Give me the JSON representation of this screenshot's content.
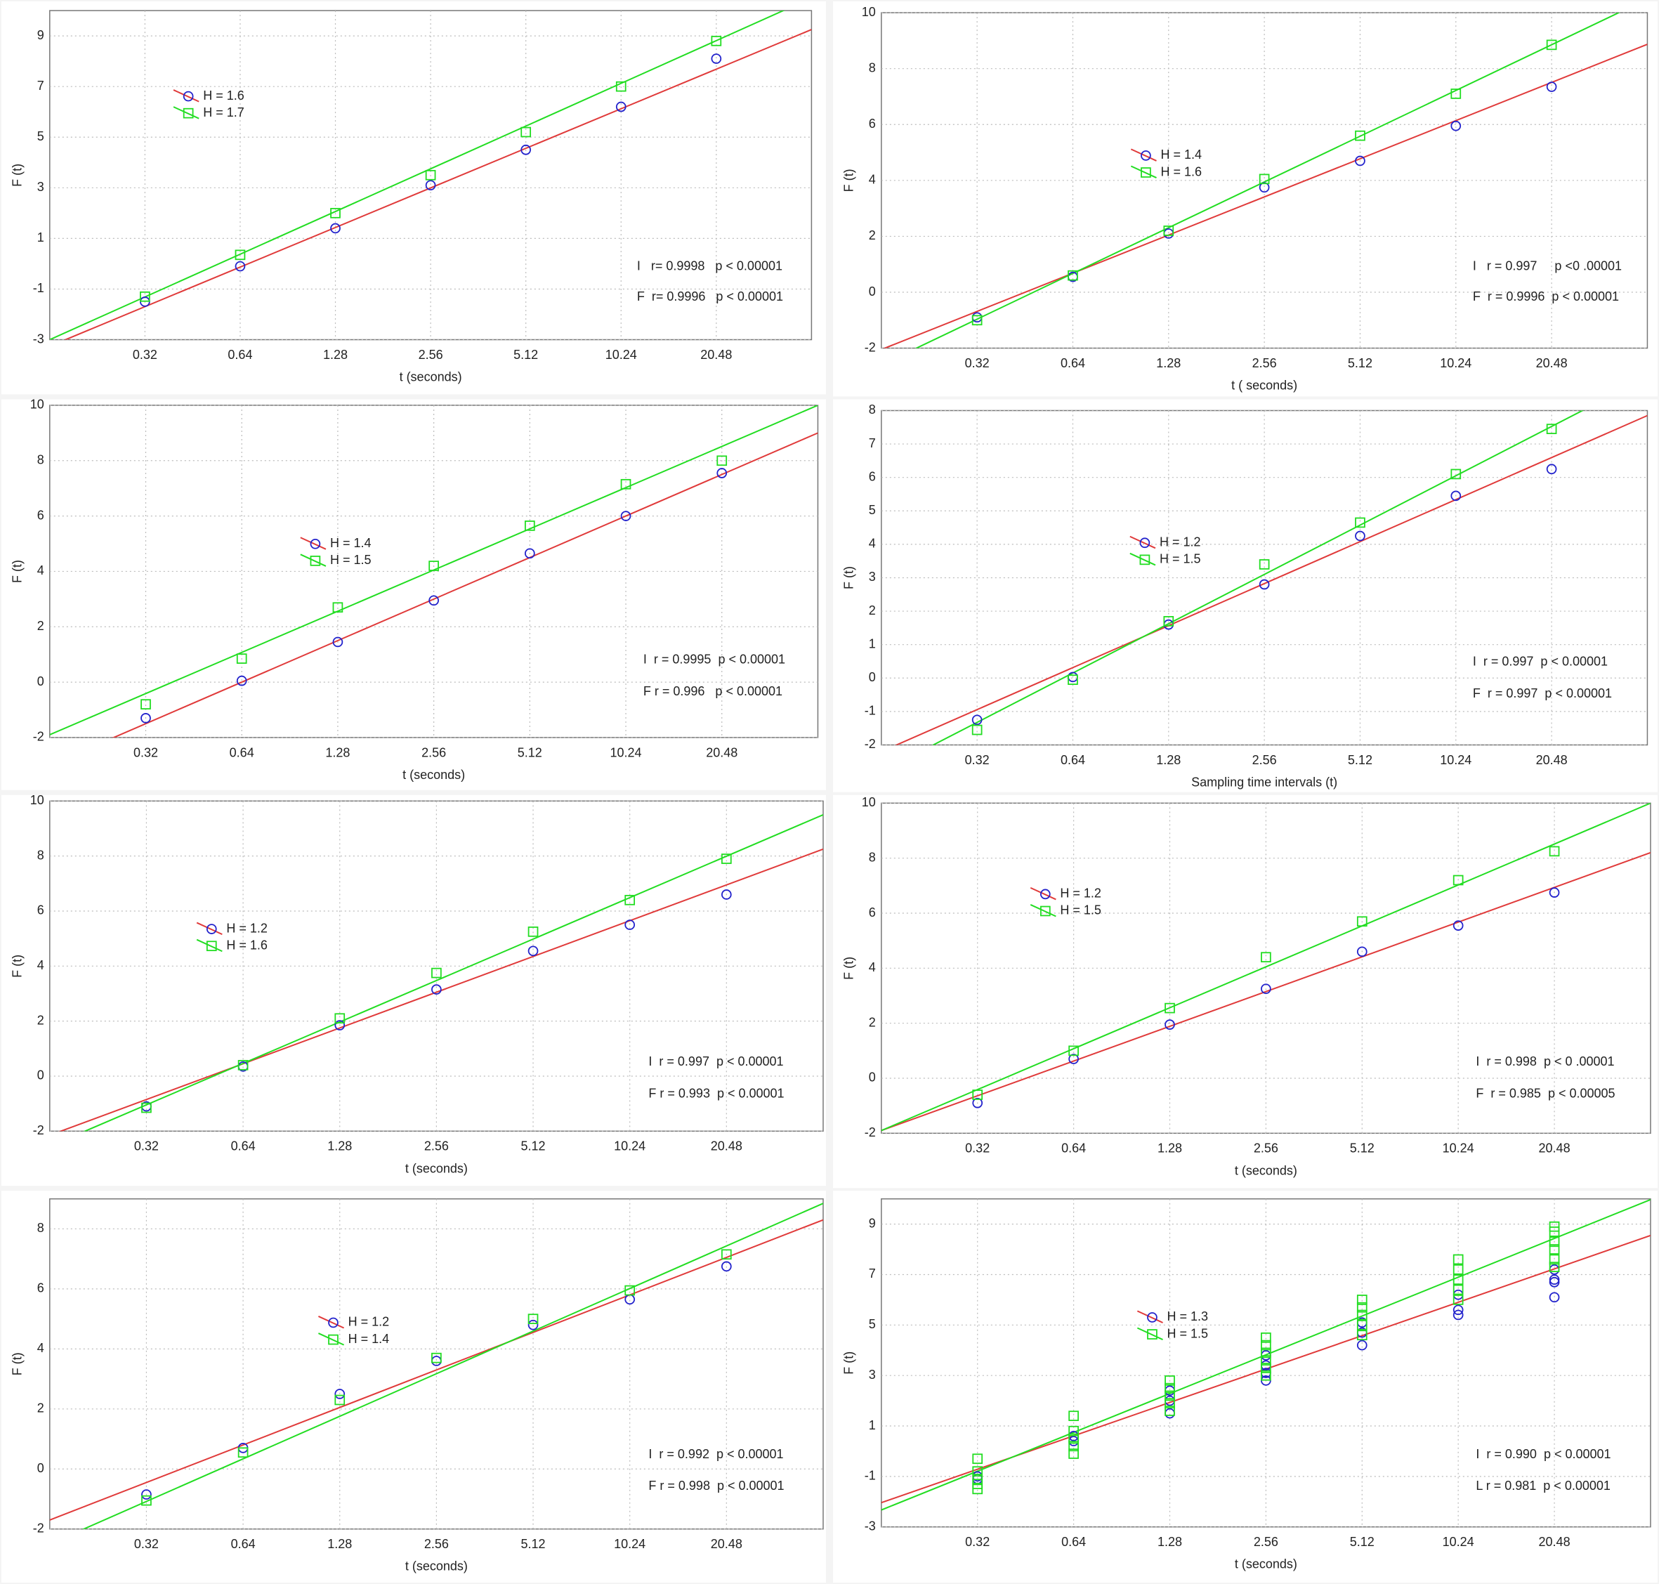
{
  "chart_data": [
    {
      "type": "scatter",
      "xlabel": "t (seconds)",
      "ylabel": "F (t)",
      "xscale": "log",
      "grid": true,
      "xlim": [
        0.16,
        40.96
      ],
      "xticks": [
        0.32,
        0.64,
        1.28,
        2.56,
        5.12,
        10.24,
        20.48
      ],
      "ylim": [
        -3,
        10
      ],
      "yticks": [
        -3,
        -1,
        1,
        3,
        5,
        7,
        9
      ],
      "x": [
        0.32,
        0.64,
        1.28,
        2.56,
        5.12,
        10.24,
        20.48
      ],
      "series": [
        {
          "name": "H = 1.6",
          "color": "#2222cc",
          "marker": "circle",
          "line_color": "#e03a3a",
          "values": [
            -1.5,
            -0.1,
            1.4,
            3.1,
            4.5,
            6.2,
            8.1
          ],
          "fit": [
            -3.26,
            9.25
          ]
        },
        {
          "name": "H = 1.7",
          "color": "#22dd22",
          "marker": "square",
          "line_color": "#22dd22",
          "values": [
            -1.3,
            0.35,
            2.0,
            3.5,
            5.2,
            7.0,
            8.8
          ],
          "fit": [
            -3.0,
            10.5
          ]
        }
      ],
      "annotations": [
        "I   r= 0.9998   p < 0.00001",
        "F  r= 0.9996   p < 0.00001"
      ]
    },
    {
      "type": "scatter",
      "xlabel": "t ( seconds)",
      "ylabel": "F (t)",
      "xscale": "log",
      "grid": true,
      "xlim": [
        0.16,
        40.96
      ],
      "xticks": [
        0.32,
        0.64,
        1.28,
        2.56,
        5.12,
        10.24,
        20.48
      ],
      "ylim": [
        -2,
        10
      ],
      "yticks": [
        -2,
        0,
        2,
        4,
        6,
        8,
        10
      ],
      "x": [
        0.32,
        0.64,
        1.28,
        2.56,
        5.12,
        10.24,
        20.48
      ],
      "series": [
        {
          "name": "H = 1.4",
          "color": "#2222cc",
          "marker": "circle",
          "line_color": "#e03a3a",
          "values": [
            -0.9,
            0.55,
            2.1,
            3.75,
            4.7,
            5.95,
            7.35
          ],
          "fit": [
            -2.05,
            8.87
          ]
        },
        {
          "name": "H = 1.6",
          "color": "#22dd22",
          "marker": "square",
          "line_color": "#22dd22",
          "values": [
            -1.0,
            0.6,
            2.2,
            4.05,
            5.6,
            7.1,
            8.85
          ],
          "fit": [
            -2.6,
            10.49
          ]
        }
      ],
      "annotations": [
        "I   r = 0.997     p <0 .00001",
        "F  r = 0.9996  p < 0.00001"
      ]
    },
    {
      "type": "scatter",
      "xlabel": "t (seconds)",
      "ylabel": "F (t)",
      "xscale": "log",
      "grid": true,
      "xlim": [
        0.16,
        40.96
      ],
      "xticks": [
        0.32,
        0.64,
        1.28,
        2.56,
        5.12,
        10.24,
        20.48
      ],
      "ylim": [
        -2,
        10
      ],
      "yticks": [
        -2,
        0,
        2,
        4,
        6,
        8,
        10
      ],
      "x": [
        0.32,
        0.64,
        1.28,
        2.56,
        5.12,
        10.24,
        20.48
      ],
      "series": [
        {
          "name": "H = 1.4",
          "color": "#2222cc",
          "marker": "circle",
          "line_color": "#e03a3a",
          "values": [
            -1.3,
            0.05,
            1.45,
            2.95,
            4.65,
            6.0,
            7.55
          ],
          "fit": [
            -3.0,
            9.0
          ]
        },
        {
          "name": "H = 1.5",
          "color": "#22dd22",
          "marker": "square",
          "line_color": "#22dd22",
          "values": [
            -0.8,
            0.85,
            2.7,
            4.2,
            5.65,
            7.15,
            8.0
          ],
          "fit": [
            -1.9,
            10.0
          ]
        }
      ],
      "annotations": [
        "I  r = 0.9995  p < 0.00001",
        "F r = 0.996   p < 0.00001"
      ]
    },
    {
      "type": "scatter",
      "xlabel": "Sampling time intervals (t)",
      "ylabel": "F (t)",
      "xscale": "log",
      "grid": true,
      "xlim": [
        0.16,
        40.96
      ],
      "xticks": [
        0.32,
        0.64,
        1.28,
        2.56,
        5.12,
        10.24,
        20.48
      ],
      "ylim": [
        -2,
        8
      ],
      "yticks": [
        -2,
        -1,
        0,
        1,
        2,
        3,
        4,
        5,
        6,
        7,
        8
      ],
      "x": [
        0.32,
        0.64,
        1.28,
        2.56,
        5.12,
        10.24,
        20.48
      ],
      "series": [
        {
          "name": "H = 1.2",
          "color": "#2222cc",
          "marker": "circle",
          "line_color": "#e03a3a",
          "values": [
            -1.25,
            0.03,
            1.6,
            2.8,
            4.25,
            5.45,
            6.25
          ],
          "fit": [
            -2.2,
            7.85
          ]
        },
        {
          "name": "H = 1.5",
          "color": "#22dd22",
          "marker": "square",
          "line_color": "#22dd22",
          "values": [
            -1.55,
            -0.05,
            1.7,
            3.4,
            4.65,
            6.1,
            7.45
          ],
          "fit": [
            -2.8,
            9.0
          ]
        }
      ],
      "annotations": [
        "I  r = 0.997  p < 0.00001",
        "F  r = 0.997  p < 0.00001"
      ]
    },
    {
      "type": "scatter",
      "xlabel": "t (seconds)",
      "ylabel": "F (t)",
      "xscale": "log",
      "grid": true,
      "xlim": [
        0.16,
        40.96
      ],
      "xticks": [
        0.32,
        0.64,
        1.28,
        2.56,
        5.12,
        10.24,
        20.48
      ],
      "ylim": [
        -2,
        10
      ],
      "yticks": [
        -2,
        0,
        2,
        4,
        6,
        8,
        10
      ],
      "x": [
        0.32,
        0.64,
        1.28,
        2.56,
        5.12,
        10.24,
        20.48
      ],
      "series": [
        {
          "name": "H = 1.2",
          "color": "#2222cc",
          "marker": "circle",
          "line_color": "#e03a3a",
          "values": [
            -1.1,
            0.35,
            1.85,
            3.15,
            4.55,
            5.5,
            6.6
          ],
          "fit": [
            -2.15,
            8.25
          ]
        },
        {
          "name": "H = 1.6",
          "color": "#22dd22",
          "marker": "square",
          "line_color": "#22dd22",
          "values": [
            -1.15,
            0.4,
            2.1,
            3.75,
            5.25,
            6.4,
            7.9
          ],
          "fit": [
            -2.55,
            9.5
          ]
        }
      ],
      "annotations": [
        "I  r = 0.997  p < 0.00001",
        "F r = 0.993  p < 0.00001"
      ]
    },
    {
      "type": "scatter",
      "xlabel": "t (seconds)",
      "ylabel": "F (t)",
      "xscale": "log",
      "grid": true,
      "xlim": [
        0.16,
        40.96
      ],
      "xticks": [
        0.32,
        0.64,
        1.28,
        2.56,
        5.12,
        10.24,
        20.48
      ],
      "ylim": [
        -2,
        10
      ],
      "yticks": [
        -2,
        0,
        2,
        4,
        6,
        8,
        10
      ],
      "x": [
        0.32,
        0.64,
        1.28,
        2.56,
        5.12,
        10.24,
        20.48
      ],
      "series": [
        {
          "name": "H = 1.2",
          "color": "#2222cc",
          "marker": "circle",
          "line_color": "#e03a3a",
          "values": [
            -0.9,
            0.7,
            1.95,
            3.25,
            4.6,
            5.55,
            6.75
          ],
          "fit": [
            -1.9,
            8.2
          ]
        },
        {
          "name": "H = 1.5",
          "color": "#22dd22",
          "marker": "square",
          "line_color": "#22dd22",
          "values": [
            -0.6,
            1.0,
            2.55,
            4.4,
            5.7,
            7.2,
            8.25
          ],
          "fit": [
            -1.9,
            10.0
          ]
        }
      ],
      "annotations": [
        "I  r = 0.998  p < 0 .00001",
        "F  r = 0.985  p < 0.00005"
      ]
    },
    {
      "type": "scatter",
      "xlabel": "t (seconds)",
      "ylabel": "F (t)",
      "xscale": "log",
      "grid": true,
      "xlim": [
        0.16,
        40.96
      ],
      "xticks": [
        0.32,
        0.64,
        1.28,
        2.56,
        5.12,
        10.24,
        20.48
      ],
      "ylim": [
        -2,
        9
      ],
      "yticks": [
        -2,
        0,
        2,
        4,
        6,
        8
      ],
      "x": [
        0.32,
        0.64,
        1.28,
        2.56,
        5.12,
        10.24,
        20.48
      ],
      "series": [
        {
          "name": "H = 1.2",
          "color": "#2222cc",
          "marker": "circle",
          "line_color": "#e03a3a",
          "values": [
            -0.85,
            0.7,
            2.5,
            3.6,
            4.8,
            5.65,
            6.75
          ],
          "fit": [
            -1.7,
            8.3
          ]
        },
        {
          "name": "H = 1.4",
          "color": "#22dd22",
          "marker": "square",
          "line_color": "#22dd22",
          "values": [
            -1.05,
            0.55,
            2.3,
            3.7,
            5.0,
            5.95,
            7.15
          ],
          "fit": [
            -2.5,
            8.85
          ]
        }
      ],
      "annotations": [
        "I  r = 0.992  p < 0.00001",
        "F r = 0.998  p < 0.00001"
      ]
    },
    {
      "type": "scatter",
      "xlabel": "t (seconds)",
      "ylabel": "F (t)",
      "xscale": "log",
      "grid": true,
      "xlim": [
        0.16,
        40.96
      ],
      "xticks": [
        0.32,
        0.64,
        1.28,
        2.56,
        5.12,
        10.24,
        20.48
      ],
      "ylim": [
        -3,
        10
      ],
      "yticks": [
        -3,
        -1,
        1,
        3,
        5,
        7,
        9
      ],
      "series": [
        {
          "name": "H = 1.3",
          "color": "#2222cc",
          "marker": "circle",
          "line_color": "#e03a3a",
          "x": [
            0.32,
            0.32,
            0.64,
            0.64,
            1.28,
            1.28,
            1.28,
            2.56,
            2.56,
            2.56,
            2.56,
            5.12,
            5.12,
            5.12,
            10.24,
            10.24,
            10.24,
            20.48,
            20.48,
            20.48,
            20.48
          ],
          "values": [
            -1.0,
            -1.1,
            0.4,
            0.6,
            1.5,
            2.0,
            2.4,
            2.8,
            3.1,
            3.4,
            3.8,
            4.2,
            4.7,
            5.1,
            5.4,
            5.6,
            6.2,
            6.1,
            6.7,
            6.8,
            7.2
          ],
          "fit": [
            -2.04,
            8.55
          ]
        },
        {
          "name": "H = 1.5",
          "color": "#22dd22",
          "marker": "square",
          "line_color": "#22dd22",
          "x": [
            0.32,
            0.32,
            0.32,
            0.32,
            0.32,
            0.64,
            0.64,
            0.64,
            0.64,
            0.64,
            1.28,
            1.28,
            1.28,
            1.28,
            1.28,
            2.56,
            2.56,
            2.56,
            2.56,
            2.56,
            2.56,
            5.12,
            5.12,
            5.12,
            5.12,
            5.12,
            10.24,
            10.24,
            10.24,
            10.24,
            10.24,
            20.48,
            20.48,
            20.48,
            20.48,
            20.48,
            20.48
          ],
          "values": [
            -0.3,
            -0.8,
            -1.1,
            -1.3,
            -1.5,
            1.4,
            0.8,
            0.5,
            0.2,
            -0.1,
            2.8,
            2.5,
            2.2,
            1.9,
            1.6,
            4.5,
            4.2,
            3.9,
            3.6,
            3.3,
            3.0,
            6.0,
            5.7,
            5.4,
            5.0,
            4.6,
            7.6,
            7.2,
            6.8,
            6.4,
            6.0,
            8.9,
            8.7,
            8.3,
            8.0,
            7.6,
            7.3
          ],
          "fit": [
            -2.33,
            9.97
          ]
        }
      ],
      "annotations": [
        "I  r = 0.990  p < 0.00001",
        "L r = 0.981  p < 0.00001"
      ]
    }
  ]
}
